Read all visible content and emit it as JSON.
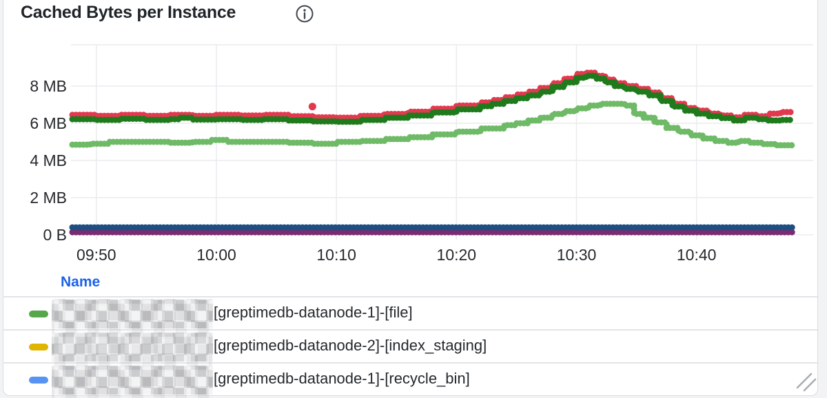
{
  "panel": {
    "title": "Cached Bytes per Instance"
  },
  "icons": {
    "info_icon": "i-in-circle-outline",
    "resize_handle_icon": "double-diagonal-lines"
  },
  "colors": {
    "accent_blue": "#1d63e8",
    "grid": "#e9ebee",
    "axis_text": "#25282c",
    "panel_border": "#d9dcdf",
    "page_bg": "#f2f3f4",
    "resize_handle": "#a9adb3",
    "info_icon": "#3f454c"
  },
  "chart_data": {
    "type": "line",
    "title": "Cached Bytes per Instance",
    "style": "step-after thick dotted strokes",
    "grid": true,
    "legend_position": "bottom-table",
    "x_axis": {
      "tick_labels": [
        "09:50",
        "10:00",
        "10:10",
        "10:20",
        "10:30",
        "10:40"
      ],
      "first_tick_offset_min": 2,
      "tick_interval_min": 10,
      "span_min": 60
    },
    "y_axis": {
      "tick_labels": [
        "0 B",
        "2 MB",
        "4 MB",
        "6 MB",
        "8 MB"
      ],
      "tick_values_mb": [
        0,
        2,
        4,
        6,
        8
      ],
      "ylim_mb": [
        0,
        10.2
      ]
    },
    "series": [
      {
        "id": "red-series",
        "color": "#e2394f",
        "points": [
          [
            0,
            6.45
          ],
          [
            2,
            6.4
          ],
          [
            4,
            6.45
          ],
          [
            6,
            6.4
          ],
          [
            8,
            6.45
          ],
          [
            10,
            6.4
          ],
          [
            12,
            6.45
          ],
          [
            14,
            6.42
          ],
          [
            16,
            6.45
          ],
          [
            18,
            6.38
          ],
          [
            20,
            6.32
          ],
          [
            22,
            6.3
          ],
          [
            24,
            6.4
          ],
          [
            26,
            6.5
          ],
          [
            28,
            6.62
          ],
          [
            30,
            6.78
          ],
          [
            32,
            6.95
          ],
          [
            34,
            7.12
          ],
          [
            35,
            7.25
          ],
          [
            36,
            7.4
          ],
          [
            37,
            7.55
          ],
          [
            38,
            7.7
          ],
          [
            39,
            7.9
          ],
          [
            40,
            8.15
          ],
          [
            41,
            8.4
          ],
          [
            42,
            8.65
          ],
          [
            42.8,
            8.72
          ],
          [
            43.6,
            8.55
          ],
          [
            44.4,
            8.35
          ],
          [
            45.2,
            8.15
          ],
          [
            46,
            8.0
          ],
          [
            47,
            7.85
          ],
          [
            48,
            7.65
          ],
          [
            49,
            7.35
          ],
          [
            50,
            7.05
          ],
          [
            51,
            6.82
          ],
          [
            52,
            6.68
          ],
          [
            53,
            6.52
          ],
          [
            54,
            6.42
          ],
          [
            55,
            6.32
          ],
          [
            56,
            6.45
          ],
          [
            57,
            6.38
          ],
          [
            58,
            6.52
          ],
          [
            59,
            6.6
          ],
          [
            60,
            6.6
          ]
        ]
      },
      {
        "id": "dark-green-series",
        "color": "#1f7a1c",
        "points": [
          [
            0,
            6.22
          ],
          [
            2,
            6.18
          ],
          [
            4,
            6.24
          ],
          [
            6,
            6.18
          ],
          [
            8,
            6.22
          ],
          [
            9,
            6.3
          ],
          [
            10,
            6.2
          ],
          [
            12,
            6.22
          ],
          [
            14,
            6.18
          ],
          [
            16,
            6.22
          ],
          [
            18,
            6.15
          ],
          [
            20,
            6.1
          ],
          [
            22,
            6.08
          ],
          [
            24,
            6.18
          ],
          [
            26,
            6.3
          ],
          [
            28,
            6.42
          ],
          [
            30,
            6.58
          ],
          [
            32,
            6.75
          ],
          [
            34,
            6.92
          ],
          [
            35,
            7.05
          ],
          [
            36,
            7.2
          ],
          [
            37,
            7.35
          ],
          [
            38,
            7.5
          ],
          [
            39,
            7.7
          ],
          [
            40,
            7.95
          ],
          [
            41,
            8.2
          ],
          [
            42,
            8.45
          ],
          [
            42.8,
            8.55
          ],
          [
            43.6,
            8.4
          ],
          [
            44.4,
            8.2
          ],
          [
            45.2,
            8.0
          ],
          [
            46,
            7.85
          ],
          [
            47,
            7.7
          ],
          [
            48,
            7.5
          ],
          [
            49,
            7.2
          ],
          [
            50,
            6.9
          ],
          [
            51,
            6.68
          ],
          [
            52,
            6.52
          ],
          [
            53,
            6.38
          ],
          [
            54,
            6.28
          ],
          [
            55,
            6.15
          ],
          [
            56,
            6.3
          ],
          [
            57,
            6.22
          ],
          [
            58,
            6.15
          ],
          [
            59,
            6.18
          ],
          [
            60,
            6.18
          ]
        ]
      },
      {
        "id": "light-green-series",
        "color": "#6fba66",
        "points": [
          [
            0,
            4.85
          ],
          [
            1.5,
            4.9
          ],
          [
            3,
            5.0
          ],
          [
            6,
            5.0
          ],
          [
            8,
            4.95
          ],
          [
            10,
            5.0
          ],
          [
            11.5,
            5.1
          ],
          [
            13,
            5.0
          ],
          [
            16,
            5.0
          ],
          [
            18,
            4.95
          ],
          [
            20,
            4.9
          ],
          [
            22,
            5.0
          ],
          [
            24,
            5.05
          ],
          [
            26,
            5.15
          ],
          [
            28,
            5.25
          ],
          [
            30,
            5.4
          ],
          [
            32,
            5.55
          ],
          [
            34,
            5.72
          ],
          [
            36,
            5.9
          ],
          [
            37,
            6.0
          ],
          [
            38,
            6.15
          ],
          [
            39,
            6.3
          ],
          [
            40,
            6.5
          ],
          [
            41,
            6.65
          ],
          [
            42,
            6.8
          ],
          [
            43,
            6.95
          ],
          [
            44,
            7.05
          ],
          [
            45,
            7.05
          ],
          [
            46,
            6.95
          ],
          [
            46.8,
            6.5
          ],
          [
            47.6,
            6.3
          ],
          [
            48.5,
            6.05
          ],
          [
            49.5,
            5.75
          ],
          [
            50.5,
            5.55
          ],
          [
            51.5,
            5.35
          ],
          [
            52.5,
            5.18
          ],
          [
            53.5,
            5.05
          ],
          [
            54.5,
            4.95
          ],
          [
            55.5,
            5.05
          ],
          [
            56.5,
            4.95
          ],
          [
            57.5,
            4.88
          ],
          [
            58.5,
            4.82
          ],
          [
            60,
            4.8
          ]
        ]
      },
      {
        "id": "purple-series",
        "color": "#7b2c71",
        "points": [
          [
            0,
            0.14
          ],
          [
            60,
            0.14
          ]
        ]
      },
      {
        "id": "navy-series",
        "color": "#1f4e82",
        "points": [
          [
            0,
            0.4
          ],
          [
            60,
            0.4
          ]
        ]
      }
    ],
    "outlier_points": [
      {
        "series": "red-series",
        "t": 20,
        "value_mb": 6.9,
        "color": "#e2394f"
      }
    ]
  },
  "legend": {
    "header": "Name",
    "rows": [
      {
        "color": "#56a64b",
        "redacted_prefix": true,
        "label": "[greptimedb-datanode-1]-[file]"
      },
      {
        "color": "#e0b400",
        "redacted_prefix": true,
        "label": "[greptimedb-datanode-2]-[index_staging]"
      },
      {
        "color": "#5794f2",
        "redacted_prefix": true,
        "label": "[greptimedb-datanode-1]-[recycle_bin]"
      }
    ]
  }
}
